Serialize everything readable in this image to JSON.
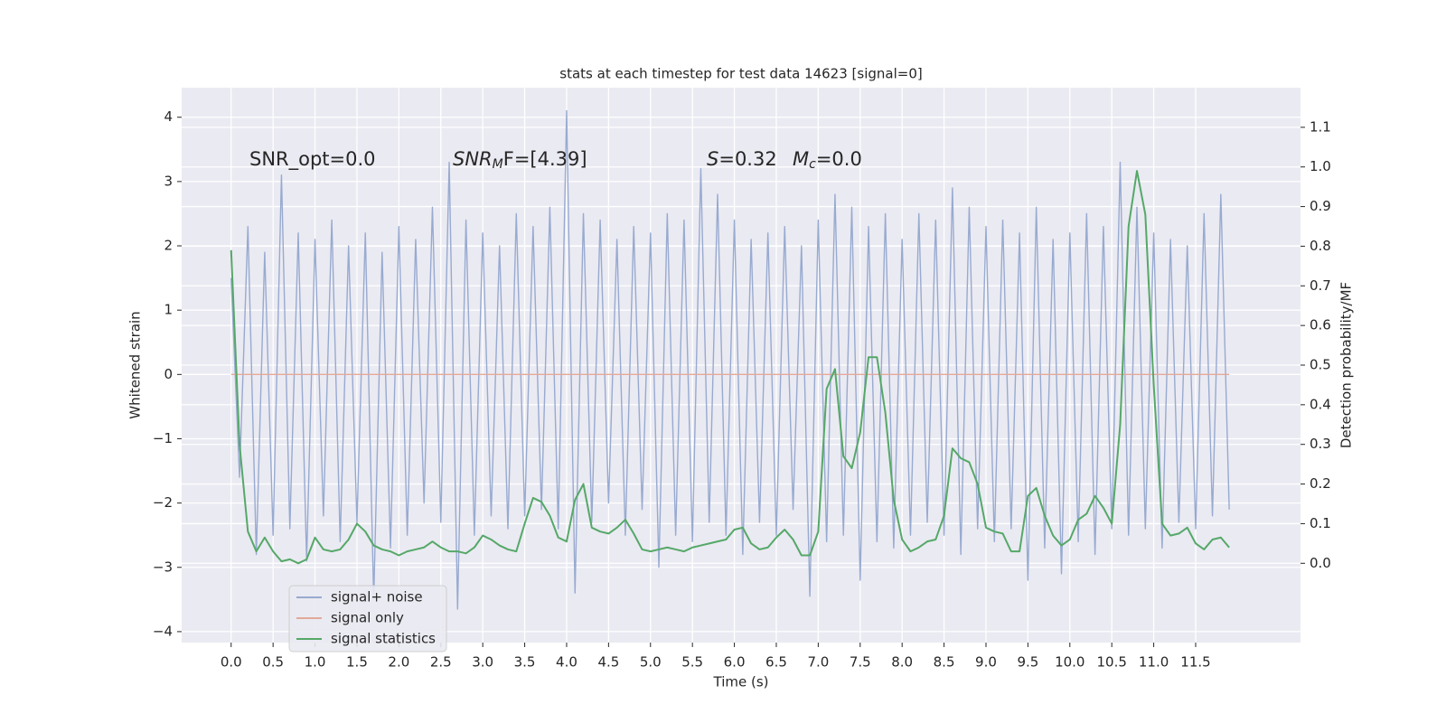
{
  "chart_data": {
    "type": "line",
    "title": "stats at each timestep for test data 14623 [signal=0]",
    "xlabel": "Time (s)",
    "ylabel": "Whitened strain",
    "y2label": "Detection probability/MF",
    "annotations": {
      "snr_opt": "SNR_opt=0.0",
      "snr_mf": [
        "SNR",
        "M",
        "F=[4.39]"
      ],
      "s": [
        "S",
        "=0.32"
      ],
      "mc": [
        "M",
        "c",
        "=0.0"
      ]
    },
    "grid": true,
    "legend": "lower left",
    "background": "#eaeaf2",
    "xlim": [
      -0.59,
      12.75
    ],
    "ylim": [
      -4.17,
      4.46
    ],
    "y2lim": [
      -0.2,
      1.2
    ],
    "xticks": [
      {
        "value": 0,
        "label": "0.0"
      },
      {
        "value": 0.5,
        "label": "0.5"
      },
      {
        "value": 1,
        "label": "1.0"
      },
      {
        "value": 1.5,
        "label": "1.5"
      },
      {
        "value": 2,
        "label": "2.0"
      },
      {
        "value": 2.5,
        "label": "2.5"
      },
      {
        "value": 3,
        "label": "3.0"
      },
      {
        "value": 3.5,
        "label": "3.5"
      },
      {
        "value": 4,
        "label": "4.0"
      },
      {
        "value": 4.5,
        "label": "4.5"
      },
      {
        "value": 5,
        "label": "5.0"
      },
      {
        "value": 5.5,
        "label": "5.5"
      },
      {
        "value": 6,
        "label": "6.0"
      },
      {
        "value": 6.5,
        "label": "6.5"
      },
      {
        "value": 7,
        "label": "7.0"
      },
      {
        "value": 7.5,
        "label": "7.5"
      },
      {
        "value": 8,
        "label": "8.0"
      },
      {
        "value": 8.5,
        "label": "8.5"
      },
      {
        "value": 9,
        "label": "9.0"
      },
      {
        "value": 9.5,
        "label": "9.5"
      },
      {
        "value": 10,
        "label": "10.0"
      },
      {
        "value": 10.5,
        "label": "10.5"
      },
      {
        "value": 11,
        "label": "11.0"
      },
      {
        "value": 11.5,
        "label": "11.5"
      }
    ],
    "yticks": [
      {
        "value": -4,
        "label": "−4"
      },
      {
        "value": -3,
        "label": "−3"
      },
      {
        "value": -2,
        "label": "−2"
      },
      {
        "value": -1,
        "label": "−1"
      },
      0,
      1,
      2,
      3,
      4
    ],
    "y2ticks": [
      {
        "value": 0,
        "label": "0.0"
      },
      {
        "value": 0.1,
        "label": "0.1"
      },
      {
        "value": 0.2,
        "label": "0.2"
      },
      {
        "value": 0.3,
        "label": "0.3"
      },
      {
        "value": 0.4,
        "label": "0.4"
      },
      {
        "value": 0.5,
        "label": "0.5"
      },
      {
        "value": 0.6,
        "label": "0.6"
      },
      {
        "value": 0.7,
        "label": "0.7"
      },
      {
        "value": 0.8,
        "label": "0.8"
      },
      {
        "value": 0.9,
        "label": "0.9"
      },
      {
        "value": 1,
        "label": "1.0"
      },
      {
        "value": 1.1,
        "label": "1.1"
      }
    ],
    "x": [
      0,
      0.1,
      0.2,
      0.3,
      0.4,
      0.5,
      0.6,
      0.7,
      0.8,
      0.9,
      1,
      1.1,
      1.2,
      1.3,
      1.4,
      1.5,
      1.6,
      1.7,
      1.8,
      1.9,
      2,
      2.1,
      2.2,
      2.3,
      2.4,
      2.5,
      2.6,
      2.7,
      2.8,
      2.9,
      3,
      3.1,
      3.2,
      3.3,
      3.4,
      3.5,
      3.6,
      3.7,
      3.8,
      3.9,
      4,
      4.1,
      4.2,
      4.3,
      4.4,
      4.5,
      4.6,
      4.7,
      4.8,
      4.9,
      5,
      5.1,
      5.2,
      5.3,
      5.4,
      5.5,
      5.6,
      5.7,
      5.8,
      5.9,
      6,
      6.1,
      6.2,
      6.3,
      6.4,
      6.5,
      6.6,
      6.7,
      6.8,
      6.9,
      7,
      7.1,
      7.2,
      7.3,
      7.4,
      7.5,
      7.6,
      7.7,
      7.8,
      7.9,
      8,
      8.1,
      8.2,
      8.3,
      8.4,
      8.5,
      8.6,
      8.7,
      8.8,
      8.9,
      9,
      9.1,
      9.2,
      9.3,
      9.4,
      9.5,
      9.6,
      9.7,
      9.8,
      9.9,
      10,
      10.1,
      10.2,
      10.3,
      10.4,
      10.5,
      10.6,
      10.7,
      10.8,
      10.9,
      11,
      11.1,
      11.2,
      11.3,
      11.4,
      11.5,
      11.6,
      11.7,
      11.8,
      11.9
    ],
    "series": [
      {
        "name": "signal+ noise",
        "color": "#98aad0",
        "values": [
          1.5,
          -1.6,
          2.3,
          -2.8,
          1.9,
          -2.5,
          3.1,
          -2.4,
          2.2,
          -2.9,
          2.1,
          -2.2,
          2.4,
          -2.6,
          2.0,
          -2.3,
          2.2,
          -3.5,
          1.9,
          -2.7,
          2.3,
          -2.5,
          2.1,
          -2.0,
          2.6,
          -2.3,
          3.3,
          -3.65,
          2.4,
          -2.5,
          2.2,
          -2.2,
          2.0,
          -2.4,
          2.5,
          -2.2,
          2.3,
          -2.1,
          2.6,
          -2.4,
          4.1,
          -3.4,
          2.5,
          -2.3,
          2.4,
          -2.0,
          2.1,
          -2.5,
          2.3,
          -2.1,
          2.2,
          -3.0,
          2.5,
          -2.5,
          2.4,
          -2.6,
          3.2,
          -2.3,
          2.8,
          -2.5,
          2.4,
          -2.8,
          2.1,
          -2.3,
          2.2,
          -2.5,
          2.3,
          -2.1,
          2.0,
          -3.45,
          2.4,
          -2.6,
          2.8,
          -2.5,
          2.6,
          -3.2,
          2.3,
          -2.6,
          2.5,
          -2.7,
          2.1,
          -2.5,
          2.5,
          -2.3,
          2.4,
          -2.5,
          2.9,
          -2.8,
          2.6,
          -2.4,
          2.3,
          -2.6,
          2.4,
          -2.4,
          2.2,
          -3.2,
          2.6,
          -2.7,
          2.1,
          -3.1,
          2.2,
          -2.6,
          2.5,
          -2.8,
          2.3,
          -2.4,
          3.3,
          -2.5,
          2.6,
          -2.4,
          2.2,
          -2.7,
          2.1,
          -2.3,
          2.0,
          -2.4,
          2.5,
          -2.2,
          2.8,
          -2.1
        ]
      },
      {
        "name": "signal only",
        "color": "#e3a999",
        "values": [
          0,
          0,
          0,
          0,
          0,
          0,
          0,
          0,
          0,
          0,
          0,
          0,
          0,
          0,
          0,
          0,
          0,
          0,
          0,
          0,
          0,
          0,
          0,
          0,
          0,
          0,
          0,
          0,
          0,
          0,
          0,
          0,
          0,
          0,
          0,
          0,
          0,
          0,
          0,
          0,
          0,
          0,
          0,
          0,
          0,
          0,
          0,
          0,
          0,
          0,
          0,
          0,
          0,
          0,
          0,
          0,
          0,
          0,
          0,
          0,
          0,
          0,
          0,
          0,
          0,
          0,
          0,
          0,
          0,
          0,
          0,
          0,
          0,
          0,
          0,
          0,
          0,
          0,
          0,
          0,
          0,
          0,
          0,
          0,
          0,
          0,
          0,
          0,
          0,
          0,
          0,
          0,
          0,
          0,
          0,
          0,
          0,
          0,
          0,
          0,
          0,
          0,
          0,
          0,
          0,
          0,
          0,
          0,
          0,
          0,
          0,
          0,
          0,
          0,
          0,
          0,
          0,
          0,
          0,
          0
        ]
      },
      {
        "name": "signal statistics",
        "color": "#55a868",
        "axis": "y2",
        "values": [
          0.79,
          0.3,
          0.08,
          0.03,
          0.065,
          0.03,
          0.005,
          0.01,
          0.0,
          0.01,
          0.065,
          0.035,
          0.03,
          0.035,
          0.06,
          0.1,
          0.08,
          0.045,
          0.035,
          0.03,
          0.02,
          0.03,
          0.035,
          0.04,
          0.055,
          0.04,
          0.03,
          0.03,
          0.025,
          0.04,
          0.07,
          0.06,
          0.045,
          0.035,
          0.03,
          0.1,
          0.165,
          0.155,
          0.12,
          0.065,
          0.055,
          0.16,
          0.2,
          0.09,
          0.08,
          0.075,
          0.09,
          0.11,
          0.075,
          0.035,
          0.03,
          0.035,
          0.04,
          0.035,
          0.03,
          0.04,
          0.045,
          0.05,
          0.055,
          0.06,
          0.085,
          0.09,
          0.05,
          0.035,
          0.04,
          0.065,
          0.085,
          0.06,
          0.02,
          0.02,
          0.08,
          0.44,
          0.49,
          0.27,
          0.24,
          0.33,
          0.52,
          0.52,
          0.38,
          0.16,
          0.06,
          0.03,
          0.04,
          0.055,
          0.06,
          0.12,
          0.29,
          0.265,
          0.255,
          0.2,
          0.09,
          0.08,
          0.075,
          0.03,
          0.03,
          0.17,
          0.19,
          0.12,
          0.07,
          0.045,
          0.06,
          0.11,
          0.125,
          0.17,
          0.14,
          0.1,
          0.35,
          0.85,
          0.99,
          0.88,
          0.45,
          0.1,
          0.07,
          0.075,
          0.09,
          0.05,
          0.035,
          0.06,
          0.065,
          0.04
        ]
      }
    ]
  }
}
